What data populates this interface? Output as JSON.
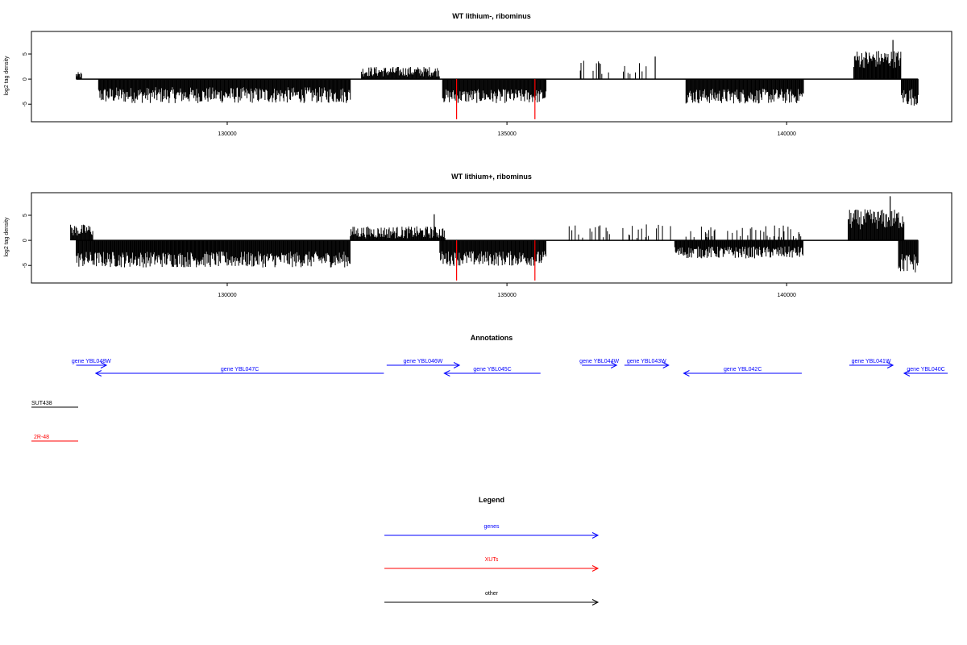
{
  "colors": {
    "signal": "#000000",
    "xut": "#ff0000",
    "gene": "#0000ff",
    "other": "#000000",
    "frame": "#000000"
  },
  "chart_data": [
    {
      "type": "bar",
      "title": "WT lithium-, riboминus",
      "ylabel": "log2 tag density",
      "xlim": [
        126500,
        142950
      ],
      "ylim": [
        -8.5,
        9.5
      ],
      "yticks": [
        -5,
        0,
        5
      ],
      "xticks": [
        130000,
        135000,
        140000
      ],
      "segments": [
        {
          "start": 127300,
          "end": 127400,
          "dir": "pos",
          "base": 0.8,
          "var": 0.6
        },
        {
          "start": 127700,
          "end": 132200,
          "dir": "neg",
          "base": -3.2,
          "var": 1.6
        },
        {
          "start": 132400,
          "end": 133800,
          "dir": "pos",
          "base": 1.5,
          "var": 1.0
        },
        {
          "start": 133850,
          "end": 135700,
          "dir": "neg",
          "base": -3.4,
          "var": 1.4
        },
        {
          "start": 136300,
          "end": 137600,
          "dir": "pos_sparse",
          "base": 2.5,
          "var": 1.5
        },
        {
          "start": 138200,
          "end": 140300,
          "dir": "neg",
          "base": -3.4,
          "var": 1.5
        },
        {
          "start": 141200,
          "end": 142050,
          "dir": "pos",
          "base": 4.0,
          "var": 1.8
        },
        {
          "start": 142050,
          "end": 142350,
          "dir": "neg",
          "base": -3.5,
          "var": 1.8
        }
      ],
      "xut_marks": [
        {
          "x": 134100,
          "y": -8.0
        },
        {
          "x": 135500,
          "y": -8.0
        }
      ],
      "peaks": [
        {
          "x": 137650,
          "y": 4.5
        },
        {
          "x": 141900,
          "y": 7.8
        }
      ]
    },
    {
      "type": "bar",
      "title": "WT lithium+, riboминus",
      "ylabel": "log2 tag density",
      "xlim": [
        126500,
        142950
      ],
      "ylim": [
        -8.5,
        9.5
      ],
      "yticks": [
        -5,
        0,
        5
      ],
      "xticks": [
        130000,
        135000,
        140000
      ],
      "segments": [
        {
          "start": 127200,
          "end": 127600,
          "dir": "pos",
          "base": 2.0,
          "var": 1.2
        },
        {
          "start": 127300,
          "end": 132200,
          "dir": "neg",
          "base": -3.8,
          "var": 1.6
        },
        {
          "start": 132200,
          "end": 133900,
          "dir": "pos",
          "base": 1.6,
          "var": 1.2
        },
        {
          "start": 133800,
          "end": 135700,
          "dir": "neg",
          "base": -3.6,
          "var": 1.5
        },
        {
          "start": 136100,
          "end": 140300,
          "dir": "pos_sparse",
          "base": 1.8,
          "var": 1.4
        },
        {
          "start": 138000,
          "end": 140300,
          "dir": "neg",
          "base": -2.4,
          "var": 1.2
        },
        {
          "start": 141100,
          "end": 142100,
          "dir": "pos",
          "base": 4.2,
          "var": 2.0
        },
        {
          "start": 142000,
          "end": 142350,
          "dir": "neg",
          "base": -4.5,
          "var": 2.0
        }
      ],
      "xut_marks": [
        {
          "x": 134100,
          "y": -8.0
        },
        {
          "x": 135500,
          "y": -8.0
        }
      ],
      "peaks": [
        {
          "x": 141850,
          "y": 8.8
        },
        {
          "x": 133700,
          "y": 5.2
        }
      ]
    }
  ],
  "annotations": {
    "title": "Annotations",
    "genes": [
      {
        "label": "gene YBL048W",
        "start": 127300,
        "end": 127840,
        "dir": "right",
        "row": 0
      },
      {
        "label": "gene YBL047C",
        "start": 127650,
        "end": 132800,
        "dir": "left",
        "row": 1
      },
      {
        "label": "gene YBL046W",
        "start": 132850,
        "end": 134150,
        "dir": "right",
        "row": 0
      },
      {
        "label": "gene YBL045C",
        "start": 133880,
        "end": 135600,
        "dir": "left",
        "row": 1
      },
      {
        "label": "gene YBL044W",
        "start": 136340,
        "end": 136960,
        "dir": "right",
        "row": 0
      },
      {
        "label": "gene YBL043W",
        "start": 137100,
        "end": 137890,
        "dir": "right",
        "row": 0
      },
      {
        "label": "gene YBL042C",
        "start": 138160,
        "end": 140270,
        "dir": "left",
        "row": 1
      },
      {
        "label": "gene YBL041W",
        "start": 141120,
        "end": 141900,
        "dir": "right",
        "row": 0
      },
      {
        "label": "gene YBL040C",
        "start": 142100,
        "end": 142950,
        "dir": "left",
        "row": 1
      }
    ],
    "other": [
      {
        "label": "SUT438",
        "start": 126500,
        "end": 127330
      }
    ],
    "xuts": [
      {
        "label": "2R-48",
        "start": 126500,
        "end": 127330
      }
    ]
  },
  "legend": {
    "title": "Legend",
    "items": [
      {
        "label": "genes",
        "kind": "gene"
      },
      {
        "label": "XUTs",
        "kind": "xut"
      },
      {
        "label": "other",
        "kind": "other"
      }
    ]
  }
}
